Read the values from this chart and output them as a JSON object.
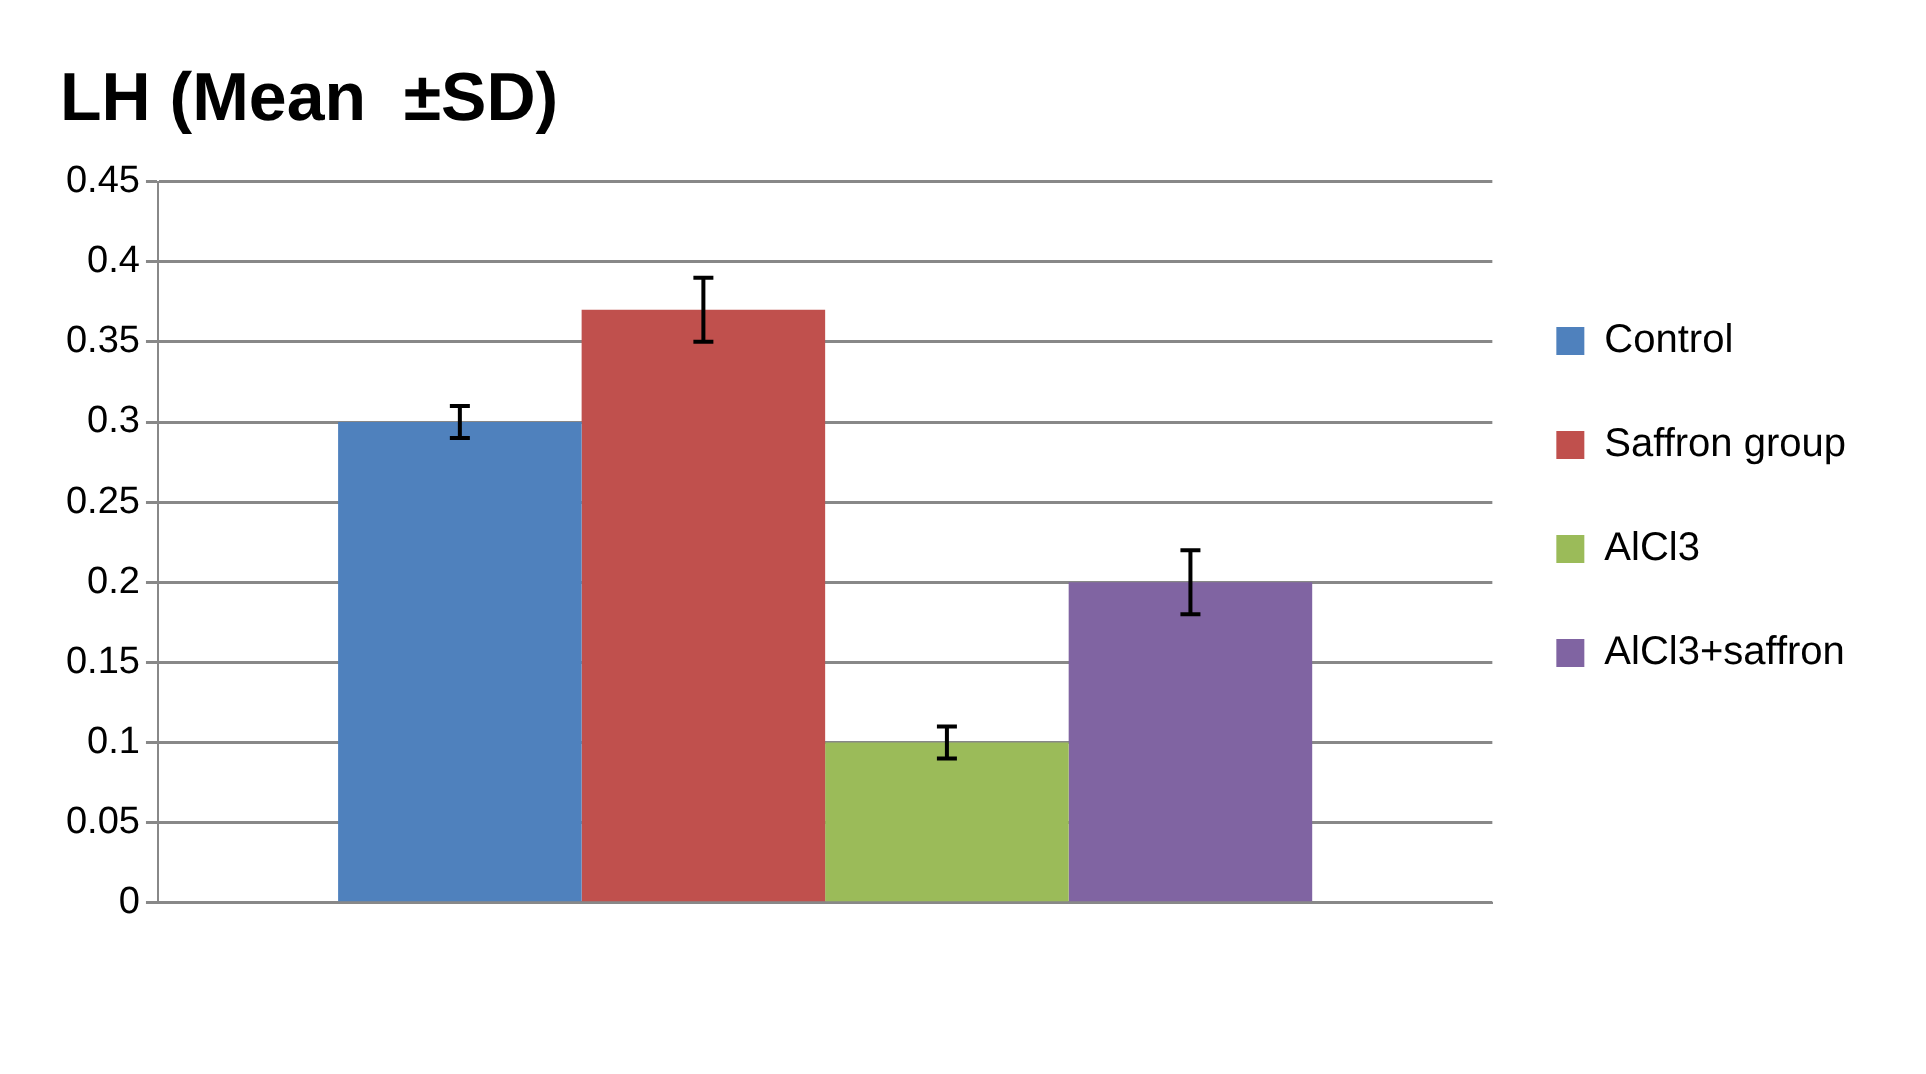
{
  "chart_data": {
    "type": "bar",
    "title": "LH (Mean  ±SD)",
    "categories": [
      null
    ],
    "series": [
      {
        "name": "Control",
        "color": "#4f81bd",
        "values": [
          0.3
        ],
        "errors": [
          0.01
        ]
      },
      {
        "name": "Saffron group",
        "color": "#c0504d",
        "values": [
          0.37
        ],
        "errors": [
          0.02
        ]
      },
      {
        "name": "AlCl3",
        "color": "#9bbb59",
        "values": [
          0.1
        ],
        "errors": [
          0.01
        ]
      },
      {
        "name": "AlCl3+saffron",
        "color": "#8064a2",
        "values": [
          0.2
        ],
        "errors": [
          0.02
        ]
      }
    ],
    "ylim": [
      0,
      0.45
    ],
    "yticks": [
      0,
      0.05,
      0.1,
      0.15,
      0.2,
      0.25,
      0.3,
      0.35,
      0.4,
      0.45
    ],
    "grid": "y",
    "legend": "right"
  }
}
